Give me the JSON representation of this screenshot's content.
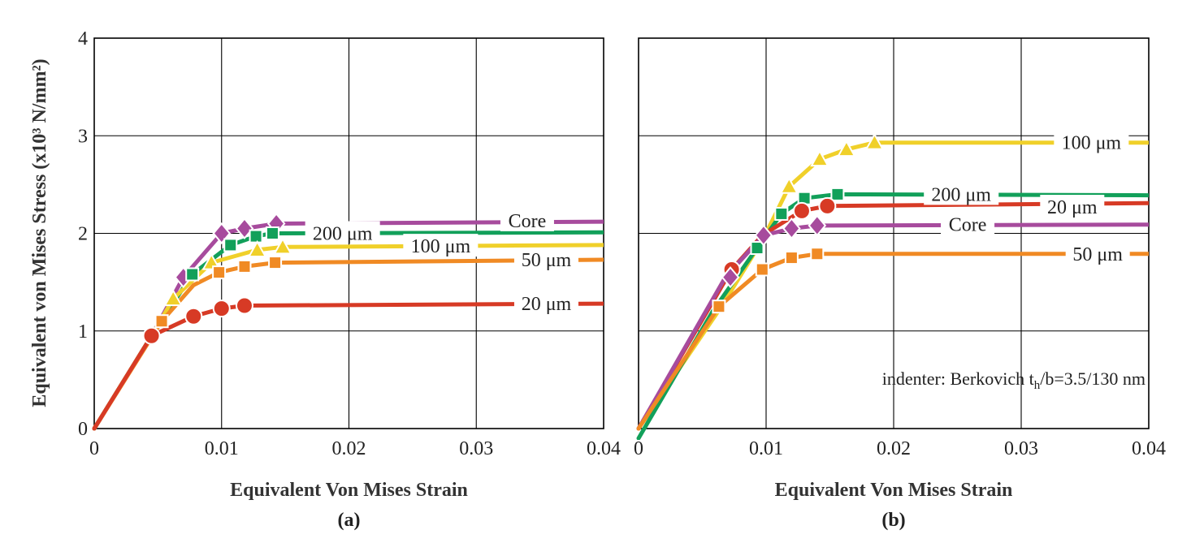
{
  "chart_data": [
    {
      "type": "line",
      "panel_label": "(a)",
      "xlabel": "Equivalent Von Mises Strain",
      "ylabel": "Equivalent von Mises Stress (x10³ N/mm²)",
      "xlim": [
        0,
        0.04
      ],
      "ylim": [
        0,
        4
      ],
      "xticks": [
        0,
        0.01,
        0.02,
        0.03,
        0.04
      ],
      "xtick_labels": [
        "0",
        "0.01",
        "0.02",
        "0.03",
        "0.04"
      ],
      "yticks": [
        0,
        1,
        2,
        3,
        4
      ],
      "ytick_labels": [
        "0",
        "1",
        "2",
        "3",
        "4"
      ],
      "grid": true,
      "series": [
        {
          "name": "Core",
          "label": "Core",
          "color": "#A74B9D",
          "marker": "diamond",
          "x": [
            0,
            0.0045,
            0.007,
            0.01,
            0.0118,
            0.0143,
            0.04
          ],
          "y": [
            0,
            0.95,
            1.55,
            2.0,
            2.05,
            2.1,
            2.12
          ],
          "markers_x": [
            0.007,
            0.01,
            0.0118,
            0.0143
          ],
          "markers_y": [
            1.55,
            2.0,
            2.05,
            2.1
          ],
          "label_at": [
            0.034,
            2.13
          ]
        },
        {
          "name": "200 μm",
          "label": "200 μm",
          "color": "#12A05A",
          "marker": "square",
          "x": [
            0,
            0.0045,
            0.0077,
            0.0107,
            0.0127,
            0.014,
            0.04
          ],
          "y": [
            0,
            0.95,
            1.58,
            1.88,
            1.97,
            2.0,
            2.01
          ],
          "markers_x": [
            0.0077,
            0.0107,
            0.0127,
            0.014
          ],
          "markers_y": [
            1.58,
            1.88,
            1.97,
            2.0
          ],
          "label_at": [
            0.0195,
            2.0
          ]
        },
        {
          "name": "100 μm",
          "label": "100 μm",
          "color": "#F0D02A",
          "marker": "triangle",
          "x": [
            0,
            0.0045,
            0.0062,
            0.0092,
            0.0128,
            0.0148,
            0.04
          ],
          "y": [
            0,
            0.95,
            1.33,
            1.7,
            1.83,
            1.86,
            1.88
          ],
          "markers_x": [
            0.0062,
            0.0092,
            0.0128,
            0.0148
          ],
          "markers_y": [
            1.33,
            1.7,
            1.83,
            1.86
          ],
          "label_at": [
            0.0272,
            1.87
          ]
        },
        {
          "name": "50 μm",
          "label": "50 μm",
          "color": "#F08A24",
          "marker": "square",
          "x": [
            0,
            0.0053,
            0.0078,
            0.0098,
            0.0118,
            0.0142,
            0.04
          ],
          "y": [
            0,
            1.1,
            1.47,
            1.6,
            1.66,
            1.7,
            1.73
          ],
          "markers_x": [
            0.0053,
            0.0098,
            0.0118,
            0.0142
          ],
          "markers_y": [
            1.1,
            1.6,
            1.66,
            1.7
          ],
          "label_at": [
            0.0355,
            1.73
          ]
        },
        {
          "name": "20 μm",
          "label": "20 μm",
          "color": "#D73A25",
          "marker": "circle",
          "x": [
            0,
            0.0045,
            0.0078,
            0.01,
            0.0118,
            0.04
          ],
          "y": [
            0,
            0.95,
            1.15,
            1.23,
            1.26,
            1.28
          ],
          "markers_x": [
            0.0045,
            0.0078,
            0.01,
            0.0118
          ],
          "markers_y": [
            0.95,
            1.15,
            1.23,
            1.26
          ],
          "label_at": [
            0.0355,
            1.28
          ]
        }
      ]
    },
    {
      "type": "line",
      "panel_label": "(b)",
      "xlabel": "Equivalent Von Mises Strain",
      "ylabel": "",
      "xlim": [
        0,
        0.04
      ],
      "ylim": [
        0,
        4
      ],
      "xticks": [
        0,
        0.01,
        0.02,
        0.03,
        0.04
      ],
      "xtick_labels": [
        "0",
        "0.01",
        "0.02",
        "0.03",
        "0.04"
      ],
      "yticks": [
        0,
        1,
        2,
        3,
        4
      ],
      "ytick_labels": [
        "",
        "",
        "",
        "",
        ""
      ],
      "grid": true,
      "annotation": "indenter: Berkovich t",
      "annotation_sub": "h",
      "annotation_tail": "/b=3.5/130 nm",
      "series": [
        {
          "name": "100 μm",
          "label": "100 μm",
          "color": "#F0D02A",
          "marker": "triangle",
          "x": [
            0,
            0.0065,
            0.0098,
            0.0118,
            0.0142,
            0.0163,
            0.0185,
            0.04
          ],
          "y": [
            0,
            1.25,
            1.95,
            2.48,
            2.76,
            2.86,
            2.93,
            2.93
          ],
          "markers_x": [
            0.0118,
            0.0142,
            0.0163,
            0.0185
          ],
          "markers_y": [
            2.48,
            2.76,
            2.86,
            2.93
          ],
          "label_at": [
            0.0355,
            2.93
          ]
        },
        {
          "name": "200 μm",
          "label": "200 μm",
          "color": "#12A05A",
          "marker": "square",
          "x": [
            0,
            0.0058,
            0.0093,
            0.0112,
            0.013,
            0.0156,
            0.04
          ],
          "y": [
            -0.1,
            1.2,
            1.85,
            2.2,
            2.36,
            2.4,
            2.39
          ],
          "markers_x": [
            0.0093,
            0.0112,
            0.013,
            0.0156
          ],
          "markers_y": [
            1.85,
            2.2,
            2.36,
            2.4
          ],
          "label_at": [
            0.0253,
            2.4
          ]
        },
        {
          "name": "20 μm",
          "label": "20 μm",
          "color": "#D73A25",
          "marker": "circle",
          "x": [
            0,
            0.0073,
            0.0097,
            0.0128,
            0.0148,
            0.04
          ],
          "y": [
            0,
            1.63,
            1.98,
            2.23,
            2.28,
            2.31
          ],
          "markers_x": [
            0.0073,
            0.0128,
            0.0148
          ],
          "markers_y": [
            1.63,
            2.23,
            2.28
          ],
          "label_at": [
            0.034,
            2.27
          ]
        },
        {
          "name": "Core",
          "label": "Core",
          "color": "#A74B9D",
          "marker": "diamond",
          "x": [
            0,
            0.0068,
            0.0098,
            0.012,
            0.014,
            0.04
          ],
          "y": [
            0,
            1.55,
            1.98,
            2.05,
            2.08,
            2.09
          ],
          "markers_x": [
            0.0072,
            0.0098,
            0.012,
            0.014
          ],
          "markers_y": [
            1.55,
            1.98,
            2.05,
            2.08
          ],
          "label_at": [
            0.0258,
            2.09
          ]
        },
        {
          "name": "50 μm",
          "label": "50 μm",
          "color": "#F08A24",
          "marker": "square",
          "x": [
            0,
            0.0063,
            0.0097,
            0.012,
            0.014,
            0.04
          ],
          "y": [
            0,
            1.25,
            1.63,
            1.75,
            1.79,
            1.79
          ],
          "markers_x": [
            0.0063,
            0.0097,
            0.012,
            0.014
          ],
          "markers_y": [
            1.25,
            1.63,
            1.75,
            1.79
          ],
          "label_at": [
            0.036,
            1.79
          ]
        }
      ]
    }
  ]
}
